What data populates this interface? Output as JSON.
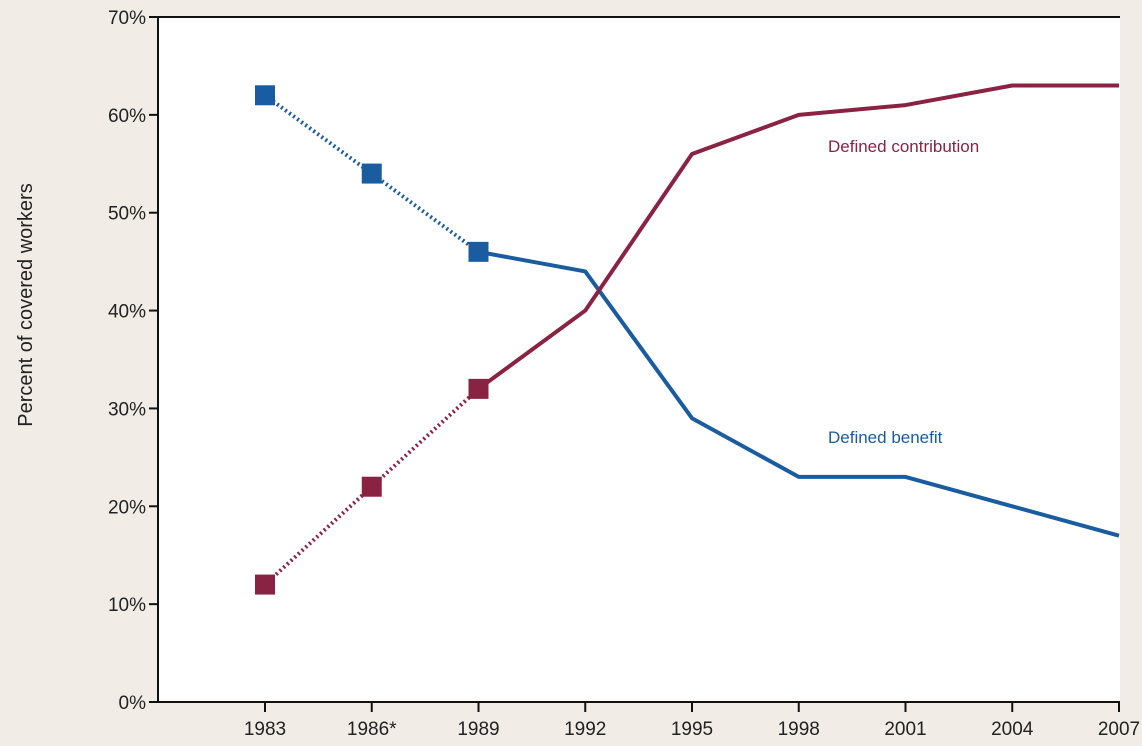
{
  "chart_data": {
    "type": "line",
    "ylabel": "Percent of covered workers",
    "xlabel": "",
    "ylim": [
      0,
      70
    ],
    "y_ticks": [
      "0%",
      "10%",
      "20%",
      "30%",
      "40%",
      "50%",
      "60%",
      "70%"
    ],
    "categories": [
      "1983",
      "1986*",
      "1989",
      "1992",
      "1995",
      "1998",
      "2001",
      "2004",
      "2007"
    ],
    "grid": false,
    "series": [
      {
        "name": "Defined benefit",
        "color": "#1a5ca0",
        "values": [
          62,
          54,
          46,
          44,
          29,
          23,
          23,
          20,
          17
        ],
        "marker_indices": [
          0,
          1,
          2
        ],
        "dotted_until_index": 2
      },
      {
        "name": "Defined contribution",
        "color": "#8a2244",
        "values": [
          12,
          22,
          32,
          40,
          56,
          60,
          61,
          63,
          63
        ],
        "marker_indices": [
          0,
          1,
          2
        ],
        "dotted_until_index": 2
      }
    ]
  }
}
